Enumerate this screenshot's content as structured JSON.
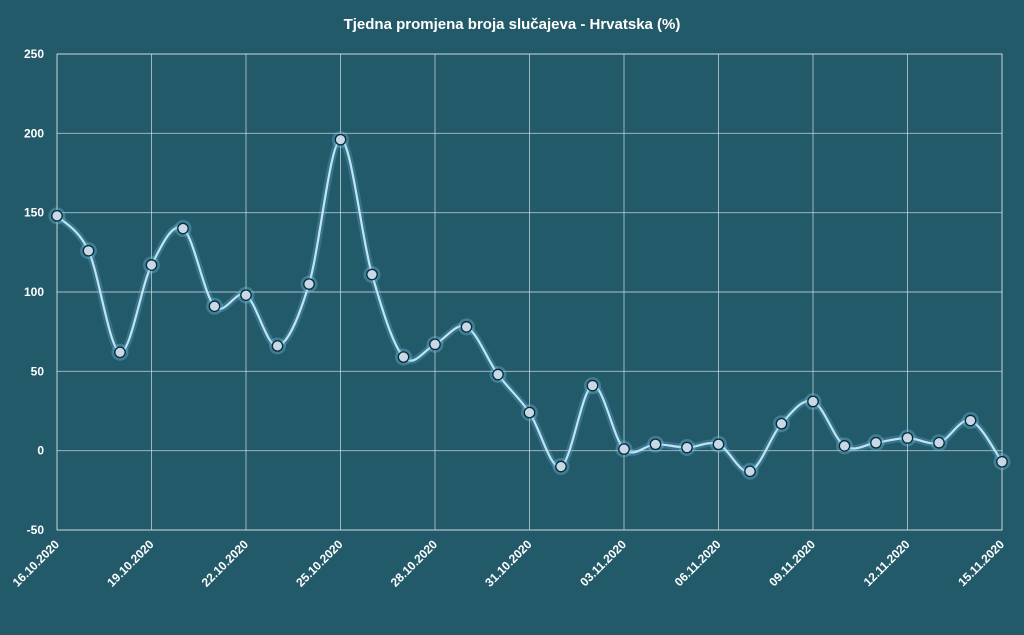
{
  "chart_data": {
    "type": "line",
    "title": "Tjedna promjena broja slučajeva - Hrvatska (%)",
    "xlabel": "",
    "ylabel": "",
    "ylim": [
      -50,
      250
    ],
    "yticks": [
      "250",
      "200",
      "150",
      "100",
      "50",
      "0",
      "-50"
    ],
    "ytick_values": [
      250,
      200,
      150,
      100,
      50,
      0,
      -50
    ],
    "xtick_labels": [
      "16.10.2020",
      "19.10.2020",
      "22.10.2020",
      "25.10.2020",
      "28.10.2020",
      "31.10.2020",
      "03.11.2020",
      "06.11.2020",
      "09.11.2020",
      "12.11.2020",
      "15.11.2020"
    ],
    "x": [
      "16.10.2020",
      "17.10.2020",
      "18.10.2020",
      "19.10.2020",
      "20.10.2020",
      "21.10.2020",
      "22.10.2020",
      "23.10.2020",
      "24.10.2020",
      "25.10.2020",
      "26.10.2020",
      "27.10.2020",
      "28.10.2020",
      "29.10.2020",
      "30.10.2020",
      "31.10.2020",
      "01.11.2020",
      "02.11.2020",
      "03.11.2020",
      "04.11.2020",
      "05.11.2020",
      "06.11.2020",
      "07.11.2020",
      "08.11.2020",
      "09.11.2020",
      "10.11.2020",
      "11.11.2020",
      "12.11.2020",
      "13.11.2020",
      "14.11.2020",
      "15.11.2020"
    ],
    "series": [
      {
        "values": [
          148,
          126,
          62,
          117,
          140,
          91,
          98,
          66,
          105,
          196,
          111,
          59,
          67,
          78,
          48,
          24,
          -10,
          41,
          1,
          4,
          2,
          4,
          -13,
          17,
          31,
          3,
          5,
          8,
          5,
          19,
          -7
        ]
      }
    ],
    "grid": true,
    "legend": "none",
    "colors": {
      "background": "#235a69",
      "line": "#c3e3f5",
      "glow": "#6fc3ea",
      "marker": "#c7d8e6"
    }
  }
}
